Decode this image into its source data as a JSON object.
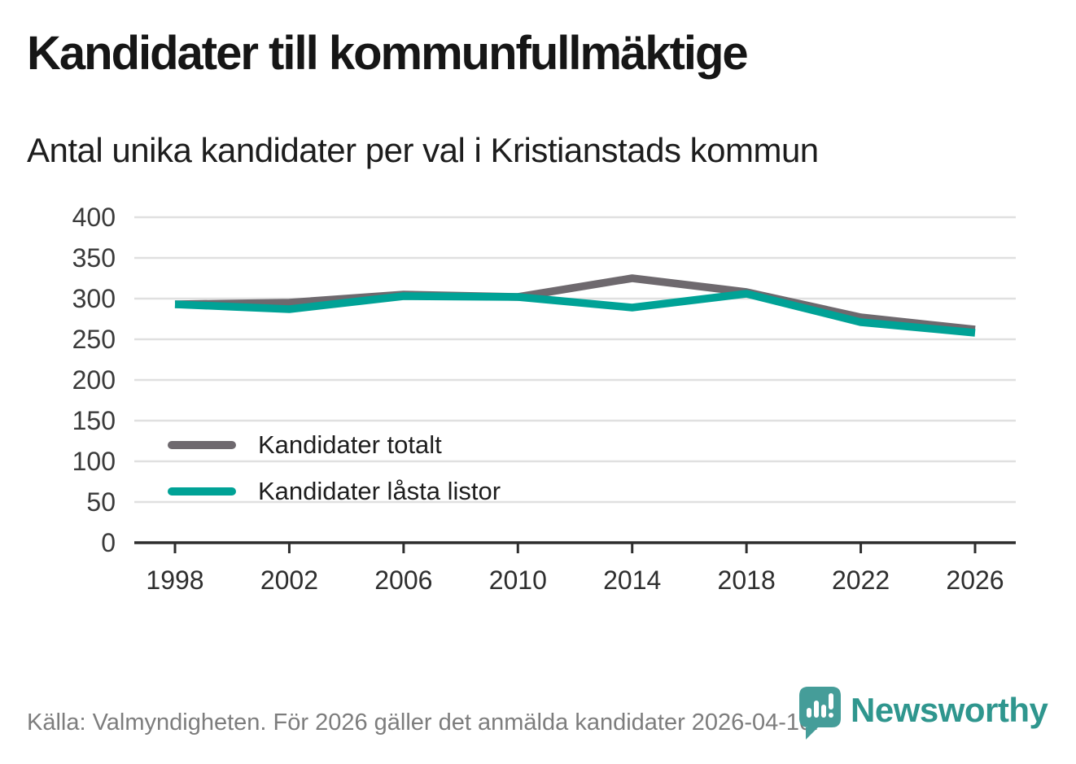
{
  "header": {
    "title": "Kandidater till kommunfullmäktige",
    "subtitle": "Antal unika kandidater per val i Kristianstads kommun"
  },
  "chart_data": {
    "type": "line",
    "title": "Kandidater till kommunfullmäktige",
    "subtitle": "Antal unika kandidater per val i Kristianstads kommun",
    "categories": [
      "1998",
      "2002",
      "2006",
      "2010",
      "2014",
      "2018",
      "2022",
      "2026"
    ],
    "series": [
      {
        "name": "Kandidater totalt",
        "color": "#6e696e",
        "values": [
          293,
          295,
          305,
          302,
          325,
          308,
          277,
          262
        ]
      },
      {
        "name": "Kandidater låsta listor",
        "color": "#00a296",
        "values": [
          293,
          287,
          303,
          302,
          289,
          306,
          271,
          258
        ]
      }
    ],
    "ylim": [
      0,
      400
    ],
    "y_ticks": [
      0,
      50,
      100,
      150,
      200,
      250,
      300,
      350,
      400
    ],
    "grid": true,
    "legend_position": "inside bottom-left",
    "axis_color": "#2e2e2e",
    "grid_color": "#e0e0e0",
    "tick_label_color": "#3a3a3a"
  },
  "footer": {
    "source": "Källa: Valmyndigheten. För 2026 gäller det anmälda kandidater 2026-04-10."
  },
  "logo": {
    "text": "Newsworthy",
    "color": "#2f968e",
    "icon": "newsworthy-pin-chart-icon",
    "icon_color": "#459d99"
  }
}
